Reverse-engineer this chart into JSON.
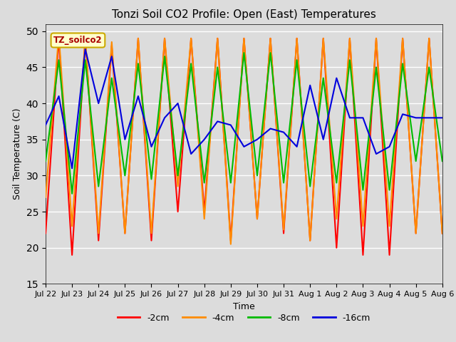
{
  "title": "Tonzi Soil CO2 Profile: Open (East) Temperatures",
  "ylabel": "Soil Temperature (C)",
  "xlabel": "Time",
  "ylim": [
    15,
    51
  ],
  "yticks": [
    15,
    20,
    25,
    30,
    35,
    40,
    45,
    50
  ],
  "legend_label": "TZ_soilco2",
  "series_colors": {
    "-2cm": "#FF0000",
    "-4cm": "#FF8C00",
    "-8cm": "#00BB00",
    "-16cm": "#0000DD"
  },
  "x_labels": [
    "Jul 22",
    "Jul 23",
    "Jul 24",
    "Jul 25",
    "Jul 26",
    "Jul 27",
    "Jul 28",
    "Jul 29",
    "Jul 30",
    "Jul 31",
    "Aug 1",
    "Aug 2",
    "Aug 3",
    "Aug 4",
    "Aug 5",
    "Aug 6"
  ],
  "n_ticks": 16,
  "background_color": "#DCDCDC",
  "series": {
    "-2cm": [
      22,
      49,
      19,
      49,
      21,
      48,
      22,
      49,
      21,
      49,
      25,
      49,
      25,
      49,
      21,
      49,
      24,
      49,
      22,
      49,
      21,
      49,
      20,
      49,
      19,
      49,
      19,
      49,
      22,
      49,
      22
    ],
    "-4cm": [
      27,
      49.5,
      23,
      49,
      22,
      48.5,
      22,
      49,
      22,
      49,
      28.5,
      49,
      24,
      49,
      20.5,
      49,
      24,
      49,
      22.5,
      49,
      21,
      49,
      24,
      49,
      23,
      49,
      23,
      49,
      22,
      49,
      22
    ],
    "-8cm": [
      32,
      46,
      27.5,
      46,
      28.5,
      43.5,
      30,
      45.5,
      29.5,
      46.5,
      30,
      45.5,
      29,
      45,
      29,
      47,
      30,
      47,
      29,
      46,
      28.5,
      43.5,
      29,
      46,
      28,
      45,
      28,
      45.5,
      32,
      45,
      32
    ],
    "-16cm": [
      37,
      41,
      31,
      47.5,
      40,
      46.5,
      35,
      41,
      34,
      38,
      40,
      33,
      35,
      37.5,
      37,
      34,
      35,
      36.5,
      36,
      34,
      42.5,
      35,
      43.5,
      38,
      38,
      33,
      34,
      38.5,
      38,
      38,
      38
    ]
  },
  "title_fontsize": 11,
  "tick_fontsize": 8,
  "label_fontsize": 9
}
